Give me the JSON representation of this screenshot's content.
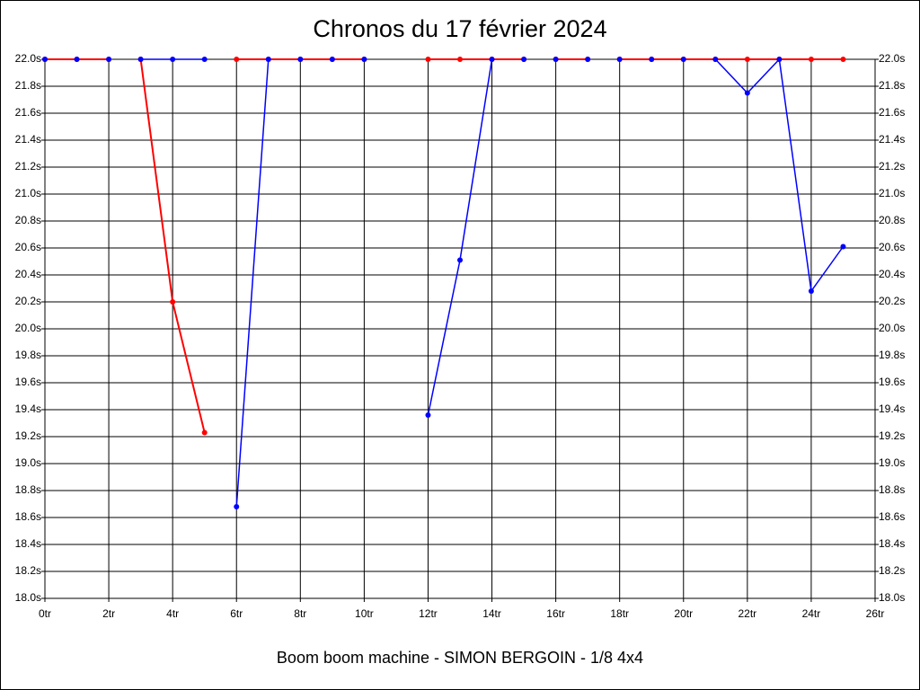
{
  "chart_data": {
    "type": "line",
    "title": "Chronos du 17 février 2024",
    "x_label": "Boom boom machine - SIMON BERGOIN - 1/8 4x4",
    "xlim": [
      0,
      26
    ],
    "xticks": [
      {
        "value": 0,
        "label": "0tr"
      },
      {
        "value": 2,
        "label": "2tr"
      },
      {
        "value": 4,
        "label": "4tr"
      },
      {
        "value": 6,
        "label": "6tr"
      },
      {
        "value": 8,
        "label": "8tr"
      },
      {
        "value": 10,
        "label": "10tr"
      },
      {
        "value": 12,
        "label": "12tr"
      },
      {
        "value": 14,
        "label": "14tr"
      },
      {
        "value": 16,
        "label": "16tr"
      },
      {
        "value": 18,
        "label": "18tr"
      },
      {
        "value": 20,
        "label": "20tr"
      },
      {
        "value": 22,
        "label": "22tr"
      },
      {
        "value": 24,
        "label": "24tr"
      },
      {
        "value": 26,
        "label": "26tr"
      }
    ],
    "ylim": [
      18.0,
      22.0
    ],
    "yticks": [
      {
        "value": 18.0,
        "label": "18.0s"
      },
      {
        "value": 18.2,
        "label": "18.2s"
      },
      {
        "value": 18.4,
        "label": "18.4s"
      },
      {
        "value": 18.6,
        "label": "18.6s"
      },
      {
        "value": 18.8,
        "label": "18.8s"
      },
      {
        "value": 19.0,
        "label": "19.0s"
      },
      {
        "value": 19.2,
        "label": "19.2s"
      },
      {
        "value": 19.4,
        "label": "19.4s"
      },
      {
        "value": 19.6,
        "label": "19.6s"
      },
      {
        "value": 19.8,
        "label": "19.8s"
      },
      {
        "value": 20.0,
        "label": "20.0s"
      },
      {
        "value": 20.2,
        "label": "20.2s"
      },
      {
        "value": 20.4,
        "label": "20.4s"
      },
      {
        "value": 20.6,
        "label": "20.6s"
      },
      {
        "value": 20.8,
        "label": "20.8s"
      },
      {
        "value": 21.0,
        "label": "21.0s"
      },
      {
        "value": 21.2,
        "label": "21.2s"
      },
      {
        "value": 21.4,
        "label": "21.4s"
      },
      {
        "value": 21.6,
        "label": "21.6s"
      },
      {
        "value": 21.8,
        "label": "21.8s"
      },
      {
        "value": 22.0,
        "label": "22.0s"
      }
    ],
    "grid": true,
    "series": [
      {
        "color": "#ff0000",
        "x": [
          0,
          1,
          2
        ],
        "values": [
          22.0,
          22.0,
          22.0
        ]
      },
      {
        "color": "#0000ff",
        "x": [
          0,
          1,
          2
        ],
        "values": [
          22.0,
          22.0,
          22.0
        ]
      },
      {
        "color": "#ff0000",
        "x": [
          3,
          4,
          5
        ],
        "values": [
          22.0,
          20.2,
          19.23
        ]
      },
      {
        "color": "#0000ff",
        "x": [
          3,
          4,
          5
        ],
        "values": [
          22.0,
          22.0,
          22.0
        ]
      },
      {
        "color": "#ff0000",
        "x": [
          6,
          7,
          8,
          9,
          10
        ],
        "values": [
          22.0,
          22.0,
          22.0,
          22.0,
          22.0
        ]
      },
      {
        "color": "#0000ff",
        "x": [
          6,
          7,
          8,
          9,
          10
        ],
        "values": [
          18.68,
          22.0,
          22.0,
          22.0,
          22.0
        ]
      },
      {
        "color": "#ff0000",
        "x": [
          12,
          13,
          14,
          15
        ],
        "values": [
          22.0,
          22.0,
          22.0,
          22.0
        ]
      },
      {
        "color": "#0000ff",
        "x": [
          12,
          13,
          14,
          15
        ],
        "values": [
          19.36,
          20.51,
          22.0,
          22.0
        ]
      },
      {
        "color": "#0000ff",
        "x": [
          16,
          17
        ],
        "values": [
          22.0,
          22.0
        ]
      },
      {
        "color": "#ff0000",
        "x": [
          16,
          17
        ],
        "values": [
          22.0,
          22.0
        ]
      },
      {
        "color": "#ff0000",
        "x": [
          18,
          19,
          20,
          21,
          22,
          23,
          24,
          25
        ],
        "values": [
          22.0,
          22.0,
          22.0,
          22.0,
          22.0,
          22.0,
          22.0,
          22.0
        ]
      },
      {
        "color": "#0000ff",
        "x": [
          18,
          19,
          20,
          21,
          22,
          23,
          24,
          25
        ],
        "values": [
          22.0,
          22.0,
          22.0,
          22.0,
          21.75,
          22.0,
          20.28,
          20.61
        ]
      }
    ]
  }
}
